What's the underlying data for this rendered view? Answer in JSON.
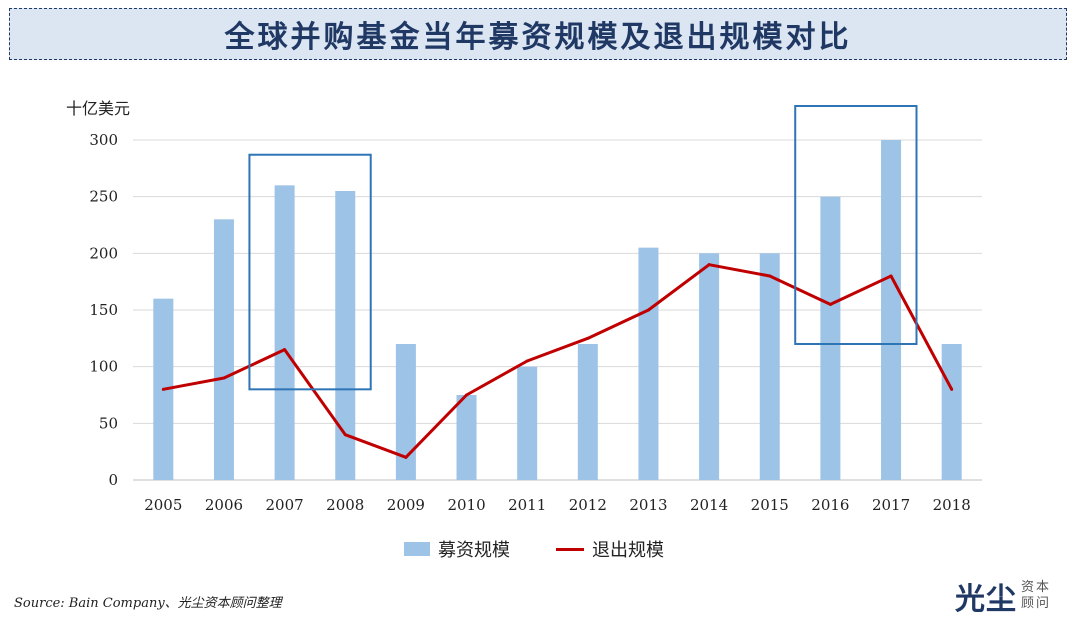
{
  "title": "全球并购基金当年募资规模及退出规模对比",
  "unit_label": "十亿美元",
  "legend": {
    "bar_label": "募资规模",
    "line_label": "退出规模"
  },
  "source": "Source: Bain Company、光尘资本顾问整理",
  "logo": {
    "main": "光尘",
    "sub_line1": "资本",
    "sub_line2": "顾问"
  },
  "colors": {
    "bar": "#9dc3e6",
    "line": "#c00000",
    "highlight_box": "#2e75b6",
    "grid": "#d9d9d9"
  },
  "chart_data": {
    "type": "bar+line",
    "categories": [
      "2005",
      "2006",
      "2007",
      "2008",
      "2009",
      "2010",
      "2011",
      "2012",
      "2013",
      "2014",
      "2015",
      "2016",
      "2017",
      "2018"
    ],
    "series": [
      {
        "name": "募资规模",
        "type": "bar",
        "values": [
          160,
          230,
          260,
          255,
          120,
          75,
          100,
          120,
          205,
          200,
          200,
          250,
          300,
          120
        ]
      },
      {
        "name": "退出规模",
        "type": "line",
        "values": [
          80,
          90,
          115,
          40,
          20,
          75,
          105,
          125,
          150,
          190,
          180,
          155,
          180,
          80
        ]
      }
    ],
    "yticks": [
      0,
      50,
      100,
      150,
      200,
      250,
      300
    ],
    "ylim": [
      0,
      300
    ],
    "ylabel": "十亿美元",
    "highlight_ranges": [
      {
        "from": "2007",
        "to": "2008",
        "y_min": 80,
        "y_max": 287
      },
      {
        "from": "2016",
        "to": "2017",
        "y_min": 120,
        "y_max": 330
      }
    ],
    "grid": true,
    "legend_position": "bottom-center"
  }
}
